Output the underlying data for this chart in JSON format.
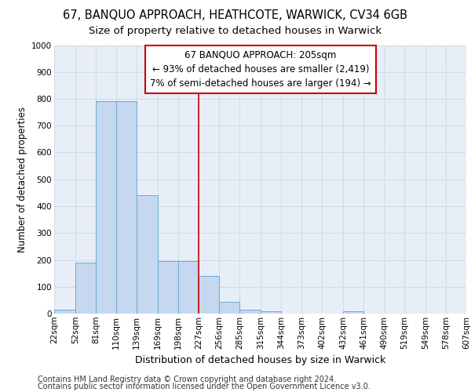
{
  "title1": "67, BANQUO APPROACH, HEATHCOTE, WARWICK, CV34 6GB",
  "title2": "Size of property relative to detached houses in Warwick",
  "xlabel": "Distribution of detached houses by size in Warwick",
  "ylabel": "Number of detached properties",
  "footer1": "Contains HM Land Registry data © Crown copyright and database right 2024.",
  "footer2": "Contains public sector information licensed under the Open Government Licence v3.0.",
  "annotation_line1": "67 BANQUO APPROACH: 205sqm",
  "annotation_line2": "← 93% of detached houses are smaller (2,419)",
  "annotation_line3": "7% of semi-detached houses are larger (194) →",
  "bin_edges": [
    22,
    52,
    81,
    110,
    139,
    169,
    198,
    227,
    256,
    285,
    315,
    344,
    373,
    402,
    432,
    461,
    490,
    519,
    549,
    578,
    607
  ],
  "bar_heights": [
    15,
    190,
    790,
    790,
    440,
    195,
    195,
    140,
    45,
    15,
    10,
    0,
    0,
    0,
    10,
    0,
    0,
    0,
    0,
    0,
    0
  ],
  "bar_color": "#c5d8f0",
  "bar_edge_color": "#6aaad4",
  "vline_color": "#cc0000",
  "vline_x": 198,
  "ylim": [
    0,
    1000
  ],
  "yticks": [
    0,
    100,
    200,
    300,
    400,
    500,
    600,
    700,
    800,
    900,
    1000
  ],
  "grid_color": "#d0dce8",
  "background_color": "#e8eef8",
  "fig_background": "#ffffff",
  "annotation_box_color": "#ffffff",
  "annotation_box_edge": "#cc0000",
  "title1_fontsize": 10.5,
  "title2_fontsize": 9.5,
  "tick_label_fontsize": 7.5,
  "ylabel_fontsize": 8.5,
  "xlabel_fontsize": 9,
  "annotation_fontsize": 8.5,
  "footer_fontsize": 7
}
